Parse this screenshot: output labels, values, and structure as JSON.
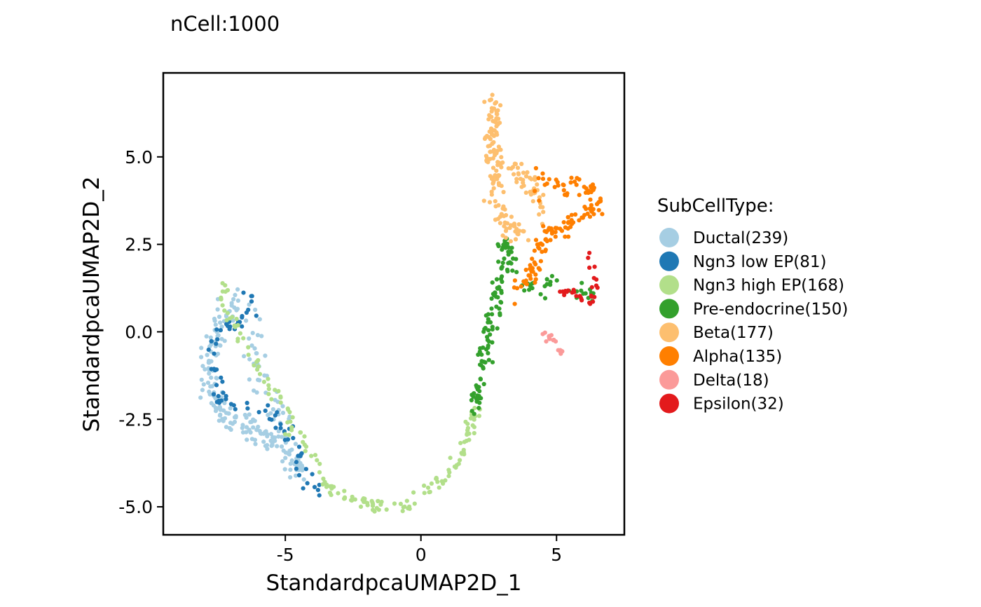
{
  "chart_data": {
    "type": "scatter",
    "title": "nCell:1000",
    "xlabel": "StandardpcaUMAP2D_1",
    "ylabel": "StandardpcaUMAP2D_2",
    "xlim": [
      -9.5,
      7.5
    ],
    "ylim": [
      -5.8,
      7.4
    ],
    "x_ticks": [
      -5,
      0,
      5
    ],
    "x_tick_labels": [
      "-5",
      "0",
      "5"
    ],
    "y_ticks": [
      -5,
      -2.5,
      0,
      2.5,
      5
    ],
    "y_tick_labels": [
      "-5.0",
      "-2.5",
      "0.0",
      "2.5",
      "5.0"
    ],
    "grid": false,
    "legend": {
      "title": "SubCellType:",
      "placement": "right"
    },
    "series": [
      {
        "name": "Ductal(239)",
        "color": "#A6CEE3",
        "count": 239,
        "path": [
          [
            -6.7,
            0.9
          ],
          [
            -7.4,
            0.5
          ],
          [
            -7.6,
            -0.3
          ],
          [
            -7.9,
            -1.0
          ],
          [
            -7.7,
            -1.8
          ],
          [
            -7.2,
            -2.4
          ],
          [
            -6.5,
            -2.7
          ],
          [
            -5.7,
            -3.0
          ],
          [
            -5.0,
            -3.3
          ],
          [
            -4.6,
            -3.8
          ],
          [
            -4.3,
            -4.1
          ]
        ],
        "spread": 0.34,
        "extra_path": [
          [
            -6.3,
            0.4
          ],
          [
            -6.0,
            -1.0
          ],
          [
            -5.6,
            -1.8
          ],
          [
            -5.0,
            -2.6
          ]
        ],
        "extra_count": 40
      },
      {
        "name": "Ngn3 low EP(81)",
        "color": "#1F78B4",
        "count": 81,
        "path": [
          [
            -6.4,
            1.1
          ],
          [
            -6.1,
            0.7
          ],
          [
            -7.7,
            -0.2
          ],
          [
            -7.5,
            -1.9
          ],
          [
            -5.6,
            -2.3
          ],
          [
            -4.9,
            -2.9
          ],
          [
            -4.5,
            -3.4
          ],
          [
            -4.6,
            -4.0
          ],
          [
            -4.0,
            -4.3
          ],
          [
            -3.7,
            -4.5
          ]
        ],
        "spread": 0.22
      },
      {
        "name": "Ngn3 high EP(168)",
        "color": "#B2DF8A",
        "count": 168,
        "path": [
          [
            -7.1,
            1.3
          ],
          [
            -7.4,
            0.9
          ],
          [
            -3.3,
            -4.6
          ],
          [
            -2.6,
            -4.8
          ],
          [
            -1.7,
            -4.9
          ],
          [
            -0.9,
            -5.0
          ],
          [
            -0.2,
            -4.9
          ],
          [
            0.3,
            -4.6
          ],
          [
            0.7,
            -4.2
          ],
          [
            1.2,
            -3.8
          ],
          [
            1.6,
            -3.2
          ],
          [
            1.9,
            -2.5
          ],
          [
            2.0,
            -2.1
          ]
        ],
        "spread": 0.2
      },
      {
        "name": "Pre-endocrine(150)",
        "color": "#33A02C",
        "count": 150,
        "path": [
          [
            1.9,
            -2.3
          ],
          [
            2.1,
            -1.6
          ],
          [
            2.3,
            -0.8
          ],
          [
            2.5,
            0.0
          ],
          [
            2.7,
            0.7
          ],
          [
            2.9,
            1.3
          ],
          [
            3.1,
            1.8
          ],
          [
            3.3,
            2.3
          ],
          [
            2.8,
            2.6
          ]
        ],
        "spread": 0.28,
        "extra_path": [
          [
            3.4,
            1.4
          ],
          [
            4.0,
            1.2
          ],
          [
            4.8,
            1.3
          ],
          [
            5.5,
            1.3
          ],
          [
            6.3,
            0.9
          ]
        ],
        "extra_count": 30
      },
      {
        "name": "Beta(177)",
        "color": "#FDBF6F",
        "count": 177,
        "path": [
          [
            2.7,
            6.7
          ],
          [
            2.7,
            6.2
          ],
          [
            2.6,
            5.6
          ],
          [
            2.7,
            5.0
          ],
          [
            2.8,
            4.4
          ],
          [
            2.7,
            3.8
          ],
          [
            3.0,
            3.3
          ],
          [
            3.3,
            3.0
          ],
          [
            3.7,
            2.8
          ]
        ],
        "spread": 0.3,
        "extra_path": [
          [
            3.4,
            4.8
          ],
          [
            3.8,
            4.3
          ],
          [
            4.2,
            3.9
          ],
          [
            4.5,
            3.4
          ]
        ],
        "extra_count": 45
      },
      {
        "name": "Alpha(135)",
        "color": "#FF7F00",
        "count": 135,
        "path": [
          [
            4.4,
            4.4
          ],
          [
            5.0,
            4.2
          ],
          [
            5.6,
            4.1
          ],
          [
            6.2,
            3.9
          ],
          [
            6.6,
            3.7
          ],
          [
            6.3,
            3.4
          ],
          [
            5.6,
            3.2
          ],
          [
            5.1,
            3.0
          ],
          [
            4.6,
            2.7
          ],
          [
            4.2,
            2.1
          ],
          [
            3.9,
            1.5
          ],
          [
            3.6,
            1.1
          ]
        ],
        "spread": 0.3
      },
      {
        "name": "Delta(18)",
        "color": "#FB9A99",
        "count": 18,
        "path": [
          [
            4.5,
            0.0
          ],
          [
            4.8,
            -0.2
          ],
          [
            5.0,
            -0.4
          ],
          [
            5.2,
            -0.6
          ]
        ],
        "spread": 0.1
      },
      {
        "name": "Epsilon(32)",
        "color": "#E31A1C",
        "count": 32,
        "path": [
          [
            6.2,
            2.4
          ],
          [
            6.3,
            2.0
          ],
          [
            6.4,
            1.6
          ],
          [
            6.4,
            1.2
          ],
          [
            6.3,
            0.8
          ],
          [
            5.7,
            1.2
          ],
          [
            5.2,
            1.1
          ]
        ],
        "spread": 0.12
      }
    ]
  }
}
